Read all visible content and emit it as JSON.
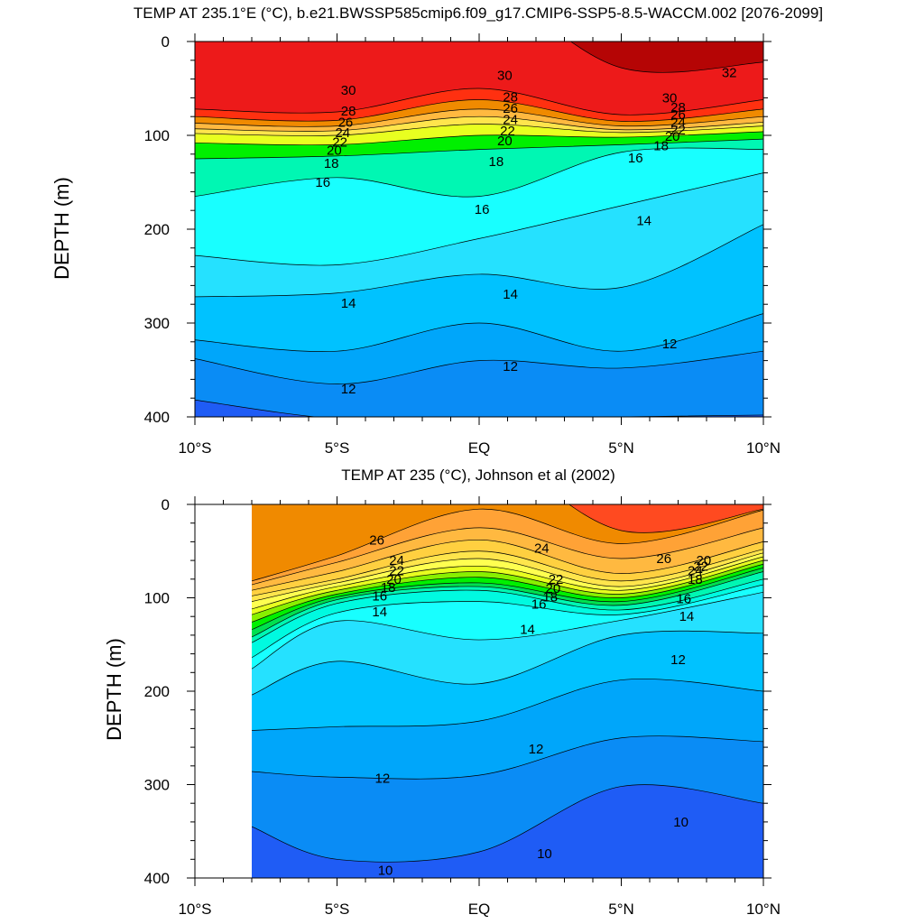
{
  "chart_data": [
    {
      "type": "contour",
      "title": "TEMP AT 235.1°E (°C), b.e21.BWSSP585cmip6.f09_g17.CMIP6-SSP5-8.5-WACCM.002 [2076-2099]",
      "ylabel": "DEPTH (m)",
      "xlabel": "",
      "xlim": [
        -10,
        10
      ],
      "ylim": [
        400,
        0
      ],
      "x_ticks": [
        -10,
        -5,
        0,
        5,
        10
      ],
      "x_tick_labels": [
        "10°S",
        "5°S",
        "EQ",
        "5°N",
        "10°N"
      ],
      "y_ticks": [
        0,
        100,
        200,
        300,
        400
      ],
      "y_tick_labels": [
        "0",
        "100",
        "200",
        "300",
        "400"
      ],
      "data_x_range": [
        -10,
        10
      ],
      "contour_interval": 1,
      "x": [
        -10,
        -5,
        0,
        5,
        10
      ],
      "isotherm_depths": [
        {
          "t": 32,
          "depth": [
            null,
            null,
            null,
            28,
            22
          ]
        },
        {
          "t": 30,
          "depth": [
            72,
            75,
            50,
            78,
            62
          ]
        },
        {
          "t": 28,
          "depth": [
            80,
            84,
            62,
            85,
            72
          ]
        },
        {
          "t": 26,
          "depth": [
            87,
            90,
            72,
            90,
            80
          ]
        },
        {
          "t": 24,
          "depth": [
            93,
            95,
            80,
            94,
            86
          ]
        },
        {
          "t": 22,
          "depth": [
            98,
            100,
            88,
            97,
            90
          ]
        },
        {
          "t": 20,
          "depth": [
            108,
            110,
            100,
            102,
            96
          ]
        },
        {
          "t": 18,
          "depth": [
            125,
            122,
            115,
            110,
            104
          ]
        },
        {
          "t": 16,
          "depth": [
            165,
            145,
            165,
            118,
            115
          ]
        },
        {
          "t": 14,
          "depth": [
            228,
            238,
            210,
            175,
            140
          ]
        },
        {
          "t": 13,
          "depth": [
            272,
            268,
            248,
            262,
            195
          ]
        },
        {
          "t": 12,
          "depth": [
            318,
            330,
            300,
            330,
            290
          ]
        },
        {
          "t": 11,
          "depth": [
            338,
            365,
            340,
            348,
            330
          ]
        },
        {
          "t": 10,
          "depth": [
            382,
            402,
            402,
            400,
            398
          ]
        }
      ],
      "contour_labels": [
        {
          "text": "32",
          "x": 8.8,
          "y": 33
        },
        {
          "text": "30",
          "x": -4.6,
          "y": 52
        },
        {
          "text": "28",
          "x": -4.6,
          "y": 74
        },
        {
          "text": "26",
          "x": -4.7,
          "y": 86
        },
        {
          "text": "24",
          "x": -4.8,
          "y": 97
        },
        {
          "text": "22",
          "x": -4.9,
          "y": 107
        },
        {
          "text": "20",
          "x": -5.1,
          "y": 116
        },
        {
          "text": "18",
          "x": -5.2,
          "y": 130
        },
        {
          "text": "16",
          "x": -5.5,
          "y": 150
        },
        {
          "text": "30",
          "x": 0.9,
          "y": 36
        },
        {
          "text": "28",
          "x": 1.1,
          "y": 59
        },
        {
          "text": "26",
          "x": 1.1,
          "y": 71
        },
        {
          "text": "24",
          "x": 1.1,
          "y": 83
        },
        {
          "text": "22",
          "x": 1.0,
          "y": 95
        },
        {
          "text": "20",
          "x": 0.9,
          "y": 106
        },
        {
          "text": "18",
          "x": 0.6,
          "y": 128
        },
        {
          "text": "16",
          "x": 0.1,
          "y": 179
        },
        {
          "text": "16",
          "x": 5.5,
          "y": 124
        },
        {
          "text": "30",
          "x": 6.7,
          "y": 60
        },
        {
          "text": "28",
          "x": 7.0,
          "y": 70
        },
        {
          "text": "26",
          "x": 7.0,
          "y": 78
        },
        {
          "text": "24",
          "x": 7.0,
          "y": 86
        },
        {
          "text": "22",
          "x": 7.0,
          "y": 94
        },
        {
          "text": "20",
          "x": 6.8,
          "y": 101
        },
        {
          "text": "18",
          "x": 6.4,
          "y": 111
        },
        {
          "text": "14",
          "x": 5.8,
          "y": 191
        },
        {
          "text": "14",
          "x": -4.6,
          "y": 279
        },
        {
          "text": "14",
          "x": 1.1,
          "y": 269
        },
        {
          "text": "12",
          "x": 1.1,
          "y": 346
        },
        {
          "text": "12",
          "x": -4.6,
          "y": 370
        },
        {
          "text": "12",
          "x": 6.7,
          "y": 322
        }
      ]
    },
    {
      "type": "contour",
      "title": "TEMP AT 235 (°C), Johnson et al (2002)",
      "ylabel": "DEPTH (m)",
      "xlabel": "",
      "xlim": [
        -10,
        10
      ],
      "ylim": [
        400,
        0
      ],
      "x_ticks": [
        -10,
        -5,
        0,
        5,
        10
      ],
      "x_tick_labels": [
        "10°S",
        "5°S",
        "EQ",
        "5°N",
        "10°N"
      ],
      "y_ticks": [
        0,
        100,
        200,
        300,
        400
      ],
      "y_tick_labels": [
        "0",
        "100",
        "200",
        "300",
        "400"
      ],
      "data_x_range": [
        -8,
        10
      ],
      "contour_interval": 1,
      "x": [
        -8,
        -5,
        0,
        5,
        10
      ],
      "isotherm_depths": [
        {
          "t": 27,
          "depth": [
            null,
            null,
            null,
            28,
            5
          ]
        },
        {
          "t": 26,
          "depth": [
            82,
            55,
            5,
            42,
            6
          ]
        },
        {
          "t": 25,
          "depth": [
            86,
            62,
            25,
            58,
            25
          ]
        },
        {
          "t": 24,
          "depth": [
            92,
            72,
            38,
            74,
            40
          ]
        },
        {
          "t": 23,
          "depth": [
            98,
            80,
            50,
            82,
            48
          ]
        },
        {
          "t": 22,
          "depth": [
            104,
            84,
            58,
            88,
            52
          ]
        },
        {
          "t": 21,
          "depth": [
            112,
            88,
            66,
            92,
            56
          ]
        },
        {
          "t": 20,
          "depth": [
            118,
            92,
            72,
            96,
            60
          ]
        },
        {
          "t": 19,
          "depth": [
            126,
            96,
            78,
            100,
            64
          ]
        },
        {
          "t": 18,
          "depth": [
            134,
            99,
            84,
            104,
            68
          ]
        },
        {
          "t": 17,
          "depth": [
            142,
            102,
            88,
            108,
            72
          ]
        },
        {
          "t": 16,
          "depth": [
            148,
            106,
            92,
            113,
            80
          ]
        },
        {
          "t": 15,
          "depth": [
            164,
            116,
            104,
            118,
            86
          ]
        },
        {
          "t": 14,
          "depth": [
            176,
            125,
            145,
            124,
            94
          ]
        },
        {
          "t": 13,
          "depth": [
            204,
            168,
            192,
            140,
            138
          ]
        },
        {
          "t": 12,
          "depth": [
            242,
            238,
            232,
            188,
            200
          ]
        },
        {
          "t": 11,
          "depth": [
            286,
            292,
            290,
            250,
            254
          ]
        },
        {
          "t": 10,
          "depth": [
            345,
            380,
            372,
            302,
            320
          ]
        }
      ],
      "contour_labels": [
        {
          "text": "26",
          "x": -3.6,
          "y": 38
        },
        {
          "text": "24",
          "x": -2.9,
          "y": 60
        },
        {
          "text": "22",
          "x": -2.9,
          "y": 71
        },
        {
          "text": "20",
          "x": -3.0,
          "y": 80
        },
        {
          "text": "18",
          "x": -3.2,
          "y": 89
        },
        {
          "text": "16",
          "x": -3.5,
          "y": 98
        },
        {
          "text": "14",
          "x": -3.5,
          "y": 115
        },
        {
          "text": "24",
          "x": 2.2,
          "y": 47
        },
        {
          "text": "22",
          "x": 2.7,
          "y": 80
        },
        {
          "text": "20",
          "x": 2.6,
          "y": 90
        },
        {
          "text": "18",
          "x": 2.5,
          "y": 99
        },
        {
          "text": "16",
          "x": 2.1,
          "y": 107
        },
        {
          "text": "14",
          "x": 1.7,
          "y": 134
        },
        {
          "text": "26",
          "x": 6.5,
          "y": 58
        },
        {
          "text": "24",
          "x": 7.6,
          "y": 71
        },
        {
          "text": "22",
          "x": 7.8,
          "y": 66
        },
        {
          "text": "20",
          "x": 7.9,
          "y": 60
        },
        {
          "text": "18",
          "x": 7.6,
          "y": 80
        },
        {
          "text": "16",
          "x": 7.2,
          "y": 101
        },
        {
          "text": "14",
          "x": 7.3,
          "y": 120
        },
        {
          "text": "12",
          "x": 7.0,
          "y": 166
        },
        {
          "text": "12",
          "x": 2.0,
          "y": 262
        },
        {
          "text": "12",
          "x": -3.4,
          "y": 293
        },
        {
          "text": "10",
          "x": 7.1,
          "y": 340
        },
        {
          "text": "10",
          "x": 2.3,
          "y": 374
        },
        {
          "text": "10",
          "x": -3.3,
          "y": 392
        }
      ]
    }
  ],
  "colors": {
    "isotherm_fill": {
      "9": "#1f5cf5",
      "10": "#0a8cf5",
      "11": "#00a6fa",
      "12": "#00c2ff",
      "13": "#25e1ff",
      "14": "#18ffff",
      "15": "#00fae0",
      "16": "#00f7b3",
      "17": "#00e050",
      "18": "#00f000",
      "19": "#88f000",
      "20": "#e8ff20",
      "21": "#ffff50",
      "22": "#ffe54c",
      "23": "#ffd040",
      "24": "#ffb940",
      "25": "#ffa236",
      "26": "#f08a00",
      "27": "#ff4a20",
      "28": "#ff3010",
      "29": "#ff1a10",
      "30": "#ed1a1a",
      "31": "#d60a0a",
      "32": "#b50505"
    },
    "line": "#000000",
    "background": "#ffffff"
  }
}
